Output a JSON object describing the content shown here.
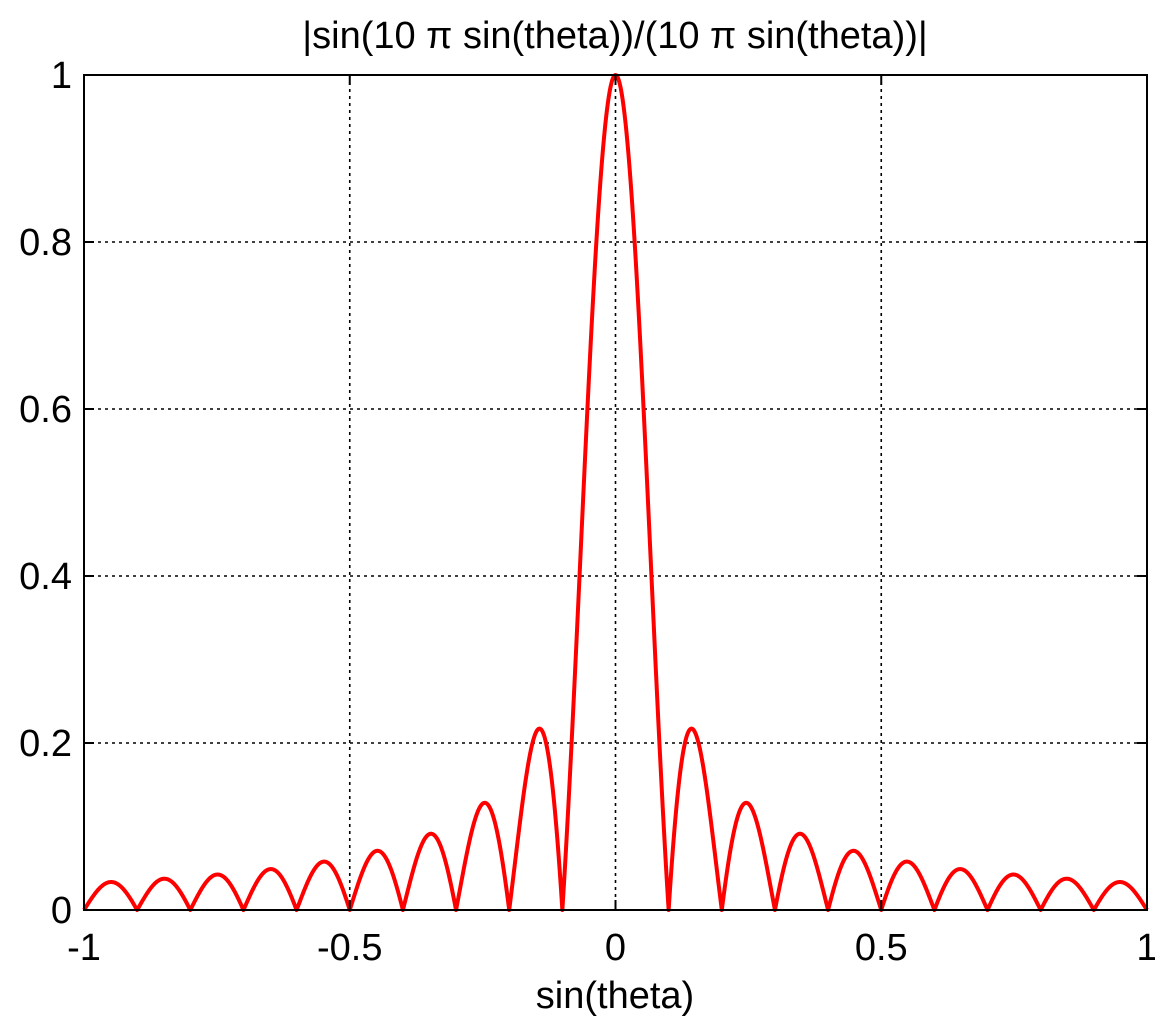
{
  "chart_data": {
    "type": "line",
    "title": "|sin(10 π sin(theta))/(10 π sin(theta))|",
    "xlabel": "sin(theta)",
    "ylabel": "",
    "xlim": [
      -1,
      1
    ],
    "ylim": [
      0,
      1
    ],
    "grid": true,
    "x_ticks": [
      -1,
      -0.5,
      0,
      0.5,
      1
    ],
    "x_tick_labels": [
      "-1",
      "-0.5",
      "0",
      "0.5",
      "1"
    ],
    "y_ticks": [
      0,
      0.2,
      0.4,
      0.6,
      0.8,
      1
    ],
    "y_tick_labels": [
      "0",
      "0.2",
      "0.4",
      "0.6",
      "0.8",
      "1"
    ],
    "series": [
      {
        "color": "#ff0000",
        "function": "abs(sinc(10*x))",
        "x": [
          -1.0,
          -0.95,
          -0.9,
          -0.85,
          -0.8,
          -0.75,
          -0.7,
          -0.65,
          -0.6,
          -0.55,
          -0.5,
          -0.45,
          -0.4,
          -0.35,
          -0.3,
          -0.25,
          -0.2,
          -0.15,
          -0.1,
          -0.05,
          0.0,
          0.05,
          0.1,
          0.15,
          0.2,
          0.25,
          0.3,
          0.35,
          0.4,
          0.45,
          0.5,
          0.55,
          0.6,
          0.65,
          0.7,
          0.75,
          0.8,
          0.85,
          0.9,
          0.95,
          1.0
        ],
        "y": [
          0.0,
          0.034,
          0.0,
          0.037,
          0.0,
          0.042,
          0.0,
          0.049,
          0.0,
          0.058,
          0.0,
          0.071,
          0.0,
          0.091,
          0.0,
          0.127,
          0.0,
          0.212,
          0.0,
          0.637,
          1.0,
          0.637,
          0.0,
          0.212,
          0.0,
          0.127,
          0.0,
          0.091,
          0.0,
          0.071,
          0.0,
          0.058,
          0.0,
          0.049,
          0.0,
          0.042,
          0.0,
          0.037,
          0.0,
          0.034,
          0.0
        ]
      }
    ]
  }
}
